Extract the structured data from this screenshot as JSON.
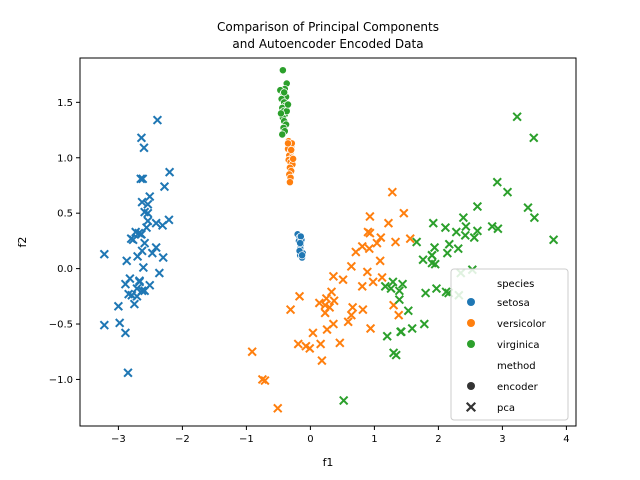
{
  "chart_data": {
    "type": "scatter",
    "title_lines": [
      "Comparison of Principal Components",
      "and Autoencoder Encoded Data"
    ],
    "xlabel": "f1",
    "ylabel": "f2",
    "xlim": [
      -3.6,
      4.15
    ],
    "ylim": [
      -1.42,
      1.9
    ],
    "xticks": [
      -3,
      -2,
      -1,
      0,
      1,
      2,
      3,
      4
    ],
    "yticks": [
      -1.0,
      -0.5,
      0.0,
      0.5,
      1.0,
      1.5
    ],
    "xtick_labels": [
      "−3",
      "−2",
      "−1",
      "0",
      "1",
      "2",
      "3",
      "4"
    ],
    "ytick_labels": [
      "−1.0",
      "−0.5",
      "0.0",
      "0.5",
      "1.0",
      "1.5"
    ],
    "grid": false,
    "legend_placement": "lower-right",
    "legend": {
      "hue_title": "species",
      "style_title": "method",
      "species": [
        {
          "name": "setosa",
          "color": "#1f77b4"
        },
        {
          "name": "versicolor",
          "color": "#ff7f0e"
        },
        {
          "name": "virginica",
          "color": "#2ca02c"
        }
      ],
      "methods": [
        {
          "name": "encoder",
          "marker": "circle"
        },
        {
          "name": "pca",
          "marker": "x"
        }
      ]
    },
    "series": [
      {
        "species": "setosa",
        "method": "pca",
        "color": "#1f77b4",
        "marker": "x",
        "points": [
          [
            -2.68,
            0.32
          ],
          [
            -2.71,
            -0.18
          ],
          [
            -2.89,
            -0.14
          ],
          [
            -2.75,
            -0.32
          ],
          [
            -2.73,
            0.33
          ],
          [
            -2.28,
            0.74
          ],
          [
            -2.82,
            -0.09
          ],
          [
            -2.63,
            0.16
          ],
          [
            -2.89,
            -0.58
          ],
          [
            -2.67,
            -0.11
          ],
          [
            -2.51,
            0.65
          ],
          [
            -2.61,
            0.01
          ],
          [
            -2.79,
            -0.24
          ],
          [
            -3.22,
            -0.51
          ],
          [
            -2.64,
            1.18
          ],
          [
            -2.39,
            1.34
          ],
          [
            -2.62,
            0.81
          ],
          [
            -2.65,
            0.31
          ],
          [
            -2.2,
            0.87
          ],
          [
            -2.59,
            0.51
          ],
          [
            -2.31,
            0.39
          ],
          [
            -2.54,
            0.43
          ],
          [
            -3.22,
            0.13
          ],
          [
            -2.3,
            0.1
          ],
          [
            -2.36,
            -0.04
          ],
          [
            -2.51,
            -0.15
          ],
          [
            -2.47,
            0.14
          ],
          [
            -2.56,
            0.37
          ],
          [
            -2.64,
            0.31
          ],
          [
            -2.63,
            -0.2
          ],
          [
            -2.59,
            -0.2
          ],
          [
            -2.41,
            0.41
          ],
          [
            -2.65,
            0.81
          ],
          [
            -2.6,
            1.09
          ],
          [
            -2.67,
            -0.12
          ],
          [
            -2.87,
            0.07
          ],
          [
            -2.63,
            0.6
          ],
          [
            -2.8,
            0.27
          ],
          [
            -2.98,
            -0.49
          ],
          [
            -2.59,
            0.23
          ],
          [
            -2.77,
            0.26
          ],
          [
            -2.85,
            -0.94
          ],
          [
            -3.0,
            -0.34
          ],
          [
            -2.41,
            0.19
          ],
          [
            -2.21,
            0.44
          ],
          [
            -2.71,
            -0.25
          ],
          [
            -2.54,
            0.5
          ],
          [
            -2.84,
            -0.23
          ],
          [
            -2.54,
            0.58
          ],
          [
            -2.7,
            0.11
          ]
        ]
      },
      {
        "species": "setosa",
        "method": "encoder",
        "color": "#1f77b4",
        "marker": "circle",
        "points": [
          [
            -0.2,
            0.31
          ],
          [
            -0.17,
            0.28
          ],
          [
            -0.15,
            0.2
          ],
          [
            -0.14,
            0.15
          ],
          [
            -0.16,
            0.12
          ],
          [
            -0.13,
            0.1
          ],
          [
            -0.18,
            0.25
          ],
          [
            -0.15,
            0.22
          ],
          [
            -0.12,
            0.14
          ],
          [
            -0.16,
            0.18
          ],
          [
            -0.14,
            0.26
          ],
          [
            -0.17,
            0.16
          ],
          [
            -0.13,
            0.12
          ],
          [
            -0.15,
            0.29
          ],
          [
            -0.16,
            0.23
          ]
        ]
      },
      {
        "species": "versicolor",
        "method": "pca",
        "color": "#ff7f0e",
        "marker": "x",
        "points": [
          [
            1.28,
            0.69
          ],
          [
            0.93,
            0.32
          ],
          [
            1.46,
            0.5
          ],
          [
            0.18,
            -0.83
          ],
          [
            1.09,
            0.07
          ],
          [
            0.64,
            -0.42
          ],
          [
            1.1,
            0.28
          ],
          [
            -0.75,
            -1.0
          ],
          [
            1.04,
            0.23
          ],
          [
            -0.01,
            -0.72
          ],
          [
            -0.51,
            -1.26
          ],
          [
            0.51,
            -0.1
          ],
          [
            0.26,
            -0.55
          ],
          [
            0.98,
            -0.12
          ],
          [
            -0.17,
            -0.25
          ],
          [
            0.93,
            0.47
          ],
          [
            0.66,
            -0.35
          ],
          [
            0.23,
            -0.33
          ],
          [
            0.94,
            -0.54
          ],
          [
            0.04,
            -0.58
          ],
          [
            1.12,
            -0.08
          ],
          [
            0.36,
            -0.07
          ],
          [
            1.3,
            -0.33
          ],
          [
            0.92,
            0.18
          ],
          [
            0.71,
            0.15
          ],
          [
            0.9,
            0.33
          ],
          [
            1.33,
            0.24
          ],
          [
            1.56,
            0.27
          ],
          [
            0.81,
            -0.16
          ],
          [
            -0.31,
            -0.37
          ],
          [
            -0.07,
            -0.7
          ],
          [
            -0.19,
            -0.68
          ],
          [
            0.14,
            -0.31
          ],
          [
            1.38,
            -0.42
          ],
          [
            0.59,
            -0.48
          ],
          [
            0.81,
            0.2
          ],
          [
            1.22,
            0.41
          ],
          [
            0.82,
            -0.37
          ],
          [
            0.25,
            -0.27
          ],
          [
            0.16,
            -0.68
          ],
          [
            0.46,
            -0.67
          ],
          [
            0.89,
            -0.03
          ],
          [
            0.23,
            -0.4
          ],
          [
            -0.71,
            -1.01
          ],
          [
            0.36,
            -0.5
          ],
          [
            0.33,
            -0.21
          ],
          [
            0.37,
            -0.29
          ],
          [
            0.64,
            0.02
          ],
          [
            -0.91,
            -0.75
          ],
          [
            0.3,
            -0.35
          ]
        ]
      },
      {
        "species": "versicolor",
        "method": "encoder",
        "color": "#ff7f0e",
        "marker": "circle",
        "points": [
          [
            -0.34,
            1.15
          ],
          [
            -0.32,
            1.12
          ],
          [
            -0.3,
            1.1
          ],
          [
            -0.35,
            1.08
          ],
          [
            -0.31,
            1.05
          ],
          [
            -0.33,
            1.02
          ],
          [
            -0.29,
            1.0
          ],
          [
            -0.34,
            0.98
          ],
          [
            -0.31,
            0.96
          ],
          [
            -0.28,
            0.94
          ],
          [
            -0.32,
            0.91
          ],
          [
            -0.3,
            0.88
          ],
          [
            -0.33,
            0.85
          ],
          [
            -0.31,
            0.82
          ],
          [
            -0.32,
            0.78
          ],
          [
            -0.29,
            1.13
          ],
          [
            -0.35,
            1.13
          ],
          [
            -0.3,
            1.07
          ],
          [
            -0.27,
            0.99
          ]
        ]
      },
      {
        "species": "virginica",
        "method": "pca",
        "color": "#2ca02c",
        "marker": "x",
        "points": [
          [
            2.53,
            -0.01
          ],
          [
            1.41,
            -0.57
          ],
          [
            2.61,
            0.34
          ],
          [
            1.97,
            -0.18
          ],
          [
            2.35,
            -0.04
          ],
          [
            3.4,
            0.55
          ],
          [
            0.52,
            -1.19
          ],
          [
            2.93,
            0.36
          ],
          [
            2.32,
            -0.24
          ],
          [
            2.92,
            0.78
          ],
          [
            1.66,
            0.24
          ],
          [
            1.8,
            -0.22
          ],
          [
            2.17,
            0.22
          ],
          [
            1.34,
            -0.78
          ],
          [
            1.59,
            -0.54
          ],
          [
            1.9,
            0.12
          ],
          [
            1.95,
            0.04
          ],
          [
            3.49,
            1.18
          ],
          [
            3.8,
            0.26
          ],
          [
            1.3,
            -0.76
          ],
          [
            2.43,
            0.38
          ],
          [
            1.2,
            -0.61
          ],
          [
            3.5,
            0.46
          ],
          [
            1.39,
            -0.2
          ],
          [
            2.28,
            0.33
          ],
          [
            2.61,
            0.56
          ],
          [
            1.26,
            -0.18
          ],
          [
            1.29,
            -0.12
          ],
          [
            2.12,
            -0.21
          ],
          [
            2.39,
            0.46
          ],
          [
            2.84,
            0.38
          ],
          [
            3.23,
            1.37
          ],
          [
            2.16,
            -0.22
          ],
          [
            1.44,
            -0.14
          ],
          [
            1.78,
            -0.5
          ],
          [
            3.08,
            0.69
          ],
          [
            2.14,
            0.14
          ],
          [
            1.9,
            0.05
          ],
          [
            1.17,
            -0.16
          ],
          [
            2.11,
            0.37
          ],
          [
            2.31,
            0.18
          ],
          [
            1.92,
            0.41
          ],
          [
            1.42,
            -0.57
          ],
          [
            2.56,
            0.28
          ],
          [
            2.42,
            0.3
          ],
          [
            1.94,
            0.19
          ],
          [
            1.53,
            -0.38
          ],
          [
            1.76,
            0.08
          ],
          [
            1.9,
            0.12
          ],
          [
            1.39,
            -0.28
          ]
        ]
      },
      {
        "species": "virginica",
        "method": "encoder",
        "color": "#2ca02c",
        "marker": "circle",
        "points": [
          [
            -0.43,
            1.79
          ],
          [
            -0.37,
            1.67
          ],
          [
            -0.4,
            1.62
          ],
          [
            -0.47,
            1.61
          ],
          [
            -0.42,
            1.58
          ],
          [
            -0.38,
            1.55
          ],
          [
            -0.45,
            1.53
          ],
          [
            -0.41,
            1.5
          ],
          [
            -0.39,
            1.47
          ],
          [
            -0.44,
            1.45
          ],
          [
            -0.42,
            1.42
          ],
          [
            -0.4,
            1.39
          ],
          [
            -0.43,
            1.36
          ],
          [
            -0.41,
            1.33
          ],
          [
            -0.38,
            1.3
          ],
          [
            -0.42,
            1.27
          ],
          [
            -0.4,
            1.24
          ],
          [
            -0.44,
            1.21
          ],
          [
            -0.37,
            1.42
          ],
          [
            -0.46,
            1.4
          ],
          [
            -0.41,
            1.59
          ],
          [
            -0.35,
            1.48
          ]
        ]
      }
    ]
  }
}
